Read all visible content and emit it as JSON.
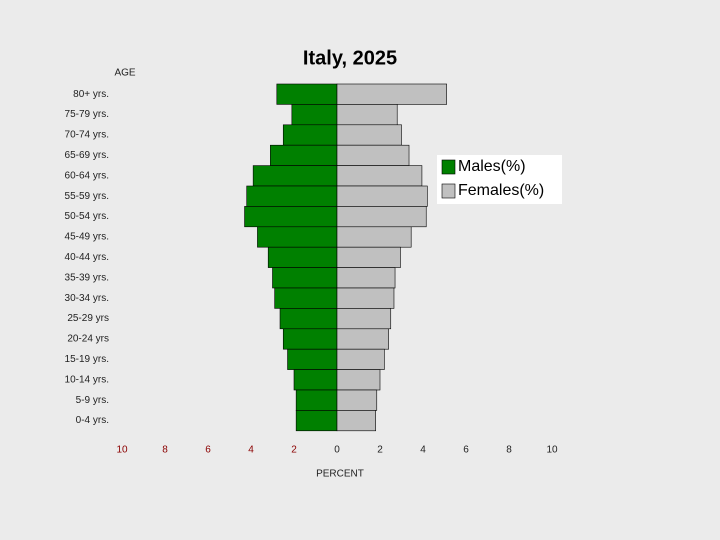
{
  "chart_data": {
    "type": "pyramid",
    "title": "Italy, 2025",
    "y_label": "AGE",
    "x_label": "PERCENT",
    "categories": [
      "80+ yrs.",
      "75-79 yrs.",
      "70-74 yrs.",
      "65-69 yrs.",
      "60-64 yrs.",
      "55-59 yrs.",
      "50-54 yrs.",
      "45-49 yrs.",
      "40-44 yrs.",
      "35-39 yrs.",
      "30-34 yrs.",
      "25-29 yrs",
      "20-24 yrs",
      "15-19 yrs.",
      "10-14 yrs.",
      "5-9 yrs.",
      "0-4 yrs."
    ],
    "series": [
      {
        "name": "Males(%)",
        "color": "#008000",
        "side": "left",
        "values": [
          2.8,
          2.1,
          2.5,
          3.1,
          3.9,
          4.2,
          4.3,
          3.7,
          3.2,
          3.0,
          2.9,
          2.65,
          2.5,
          2.3,
          2.0,
          1.9,
          1.9
        ]
      },
      {
        "name": "Females(%)",
        "color": "#c0c0c0",
        "side": "right",
        "values": [
          5.1,
          2.8,
          3.0,
          3.35,
          3.95,
          4.2,
          4.15,
          3.45,
          2.95,
          2.7,
          2.65,
          2.5,
          2.4,
          2.2,
          2.0,
          1.85,
          1.8
        ]
      }
    ],
    "xlim": [
      -10,
      10
    ],
    "xticks": [
      {
        "value": -10,
        "label": "10"
      },
      {
        "value": -8,
        "label": "8"
      },
      {
        "value": -6,
        "label": "6"
      },
      {
        "value": -4,
        "label": "4"
      },
      {
        "value": -2,
        "label": "2"
      },
      0,
      2,
      4,
      6,
      8,
      10
    ]
  }
}
